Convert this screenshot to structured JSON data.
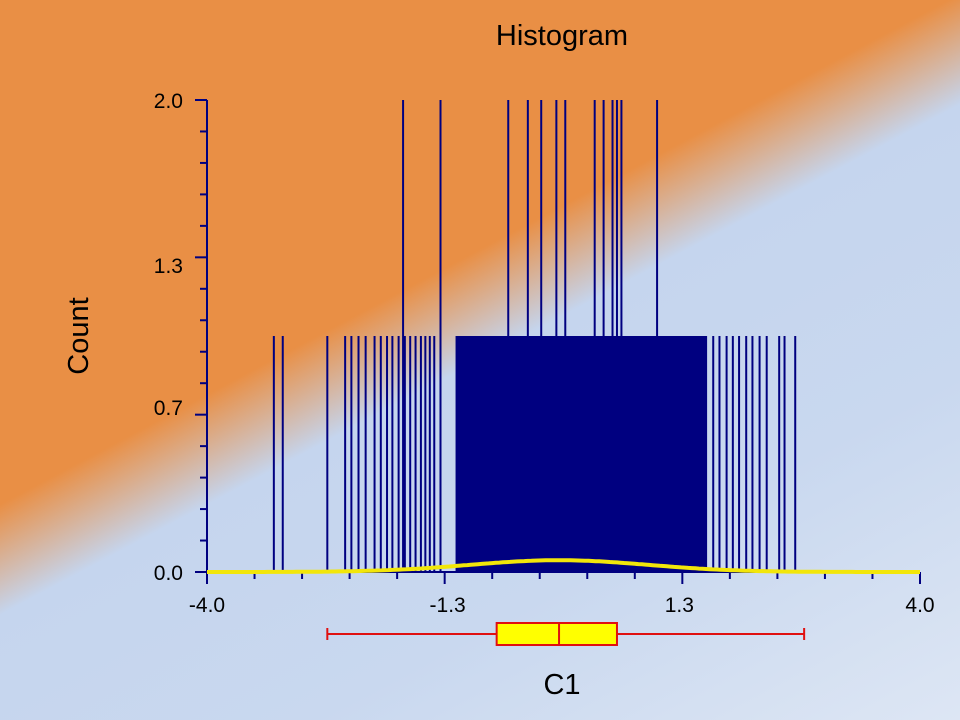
{
  "chart_data": {
    "type": "histogram",
    "title": "Histogram",
    "xlabel": "C1",
    "ylabel": "Count",
    "xlim": [
      -4.0,
      4.0
    ],
    "ylim": [
      0.0,
      2.0
    ],
    "x_tick_labels": [
      "-4.0",
      "-1.3",
      "1.3",
      "4.0"
    ],
    "y_tick_labels": [
      "0.0",
      "0.7",
      "1.3",
      "2.0"
    ],
    "x_ticks": [
      -4.0,
      -1.3,
      1.3,
      4.0
    ],
    "y_ticks": [
      0.0,
      0.7,
      1.3,
      2.0
    ],
    "count1_sparse_x": [
      -3.25,
      -3.15,
      -2.65,
      -2.45,
      -2.38,
      -2.3,
      -2.22,
      -2.12,
      -2.05,
      -1.98,
      -1.92,
      -1.85,
      -1.78,
      -1.72,
      -1.66,
      -1.6,
      -1.55,
      -1.5,
      -1.45,
      1.68,
      1.75,
      1.83,
      1.9,
      1.97,
      2.05,
      2.12,
      2.2,
      2.28,
      2.42,
      2.48,
      2.6
    ],
    "count1_dense_range": [
      -1.2,
      1.6
    ],
    "count2_x": [
      -1.8,
      -1.38,
      0.02,
      -0.08,
      -0.25,
      -0.4,
      -0.62,
      0.35,
      0.45,
      0.55,
      0.6,
      0.65,
      1.05
    ],
    "density_curve": {
      "mean": -0.05,
      "sd": 1.0,
      "peak_count": 0.05
    },
    "boxplot": {
      "min": -2.65,
      "q1": -0.75,
      "median": -0.05,
      "q3": 0.6,
      "max": 2.7
    },
    "colors": {
      "bars": "#000080",
      "density_line": "#f2e60a",
      "box_fill": "#ffff00",
      "box_line": "#e01010",
      "axis": "#000080",
      "background_orange": "#e98f45",
      "background_blue": "#c9d8ef"
    },
    "grid": false
  }
}
